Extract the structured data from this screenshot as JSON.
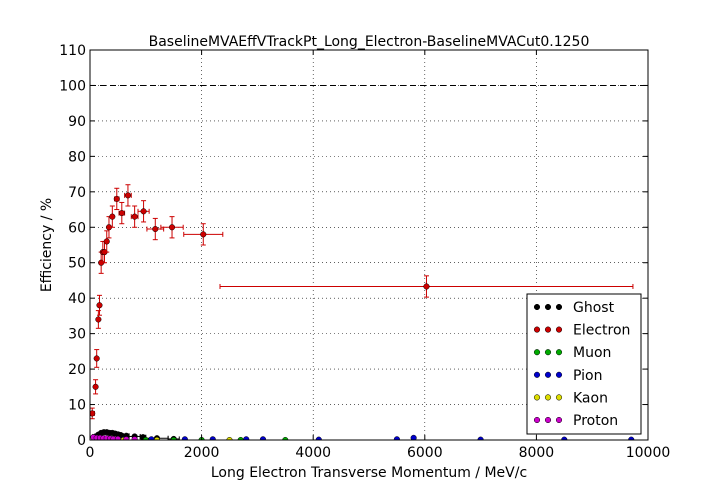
{
  "chart_data": {
    "type": "scatter",
    "title": "BaselineMVAEffVTrackPt_Long_Electron-BaselineMVACut0.1250",
    "xlabel": "Long Electron Transverse Momentum / MeV/c",
    "ylabel": "Efficiency / %",
    "xlim": [
      0,
      10000
    ],
    "ylim": [
      0,
      110
    ],
    "x_ticks": [
      "0",
      "2000",
      "4000",
      "6000",
      "8000",
      "10000"
    ],
    "y_ticks": [
      "0",
      "10",
      "20",
      "30",
      "40",
      "50",
      "60",
      "70",
      "80",
      "90",
      "100",
      "110"
    ],
    "grid": true,
    "reference_line": 100,
    "legend_position": "lower-right",
    "series": [
      {
        "name": "Ghost",
        "color": "#000000",
        "points": [
          {
            "x": 100,
            "y": 1.0,
            "xerr": 50,
            "yerr": 0.4
          },
          {
            "x": 150,
            "y": 1.5,
            "xerr": 25,
            "yerr": 0.4
          },
          {
            "x": 200,
            "y": 2.0,
            "xerr": 25,
            "yerr": 0.4
          },
          {
            "x": 250,
            "y": 2.2,
            "xerr": 25,
            "yerr": 0.4
          },
          {
            "x": 300,
            "y": 2.2,
            "xerr": 25,
            "yerr": 0.4
          },
          {
            "x": 350,
            "y": 2.0,
            "xerr": 25,
            "yerr": 0.4
          },
          {
            "x": 400,
            "y": 2.0,
            "xerr": 25,
            "yerr": 0.4
          },
          {
            "x": 450,
            "y": 1.8,
            "xerr": 25,
            "yerr": 0.4
          },
          {
            "x": 500,
            "y": 1.6,
            "xerr": 25,
            "yerr": 0.4
          },
          {
            "x": 550,
            "y": 1.4,
            "xerr": 25,
            "yerr": 0.4
          },
          {
            "x": 650,
            "y": 1.2,
            "xerr": 50,
            "yerr": 0.4
          },
          {
            "x": 800,
            "y": 1.0,
            "xerr": 100,
            "yerr": 0.4
          },
          {
            "x": 950,
            "y": 0.8,
            "xerr": 50,
            "yerr": 0.4
          },
          {
            "x": 1200,
            "y": 0.5,
            "xerr": 200,
            "yerr": 0.3
          },
          {
            "x": 1500,
            "y": 0.3,
            "xerr": 100,
            "yerr": 0.3
          }
        ]
      },
      {
        "name": "Electron",
        "color": "#cc0000",
        "points": [
          {
            "x": 40,
            "y": 7.5,
            "xerr": 40,
            "yerr": 1.5
          },
          {
            "x": 100,
            "y": 15.0,
            "xerr": 20,
            "yerr": 2.0
          },
          {
            "x": 120,
            "y": 23.0,
            "xerr": 20,
            "yerr": 2.5
          },
          {
            "x": 150,
            "y": 34.0,
            "xerr": 20,
            "yerr": 2.5
          },
          {
            "x": 170,
            "y": 38.0,
            "xerr": 20,
            "yerr": 2.8
          },
          {
            "x": 200,
            "y": 50.0,
            "xerr": 20,
            "yerr": 3.0
          },
          {
            "x": 230,
            "y": 53.0,
            "xerr": 20,
            "yerr": 3.0
          },
          {
            "x": 260,
            "y": 53.0,
            "xerr": 20,
            "yerr": 3.0
          },
          {
            "x": 300,
            "y": 56.0,
            "xerr": 25,
            "yerr": 3.0
          },
          {
            "x": 340,
            "y": 60.0,
            "xerr": 25,
            "yerr": 3.0
          },
          {
            "x": 400,
            "y": 63.0,
            "xerr": 25,
            "yerr": 3.0
          },
          {
            "x": 480,
            "y": 68.0,
            "xerr": 40,
            "yerr": 3.0
          },
          {
            "x": 570,
            "y": 64.0,
            "xerr": 50,
            "yerr": 3.0
          },
          {
            "x": 680,
            "y": 69.0,
            "xerr": 60,
            "yerr": 3.0
          },
          {
            "x": 800,
            "y": 63.0,
            "xerr": 60,
            "yerr": 3.0
          },
          {
            "x": 960,
            "y": 64.5,
            "xerr": 100,
            "yerr": 3.0
          },
          {
            "x": 1170,
            "y": 59.5,
            "xerr": 150,
            "yerr": 3.0
          },
          {
            "x": 1470,
            "y": 60.0,
            "xerr": 200,
            "yerr": 3.0
          },
          {
            "x": 2030,
            "y": 58.0,
            "xerr": 350,
            "yerr": 3.0
          },
          {
            "x": 6030,
            "y": 43.3,
            "xerr": 3700,
            "yerr": 3.0
          }
        ]
      },
      {
        "name": "Muon",
        "color": "#00aa00",
        "points": [
          {
            "x": 400,
            "y": 0.0
          },
          {
            "x": 1000,
            "y": 0.0
          },
          {
            "x": 1500,
            "y": 0.0
          },
          {
            "x": 2000,
            "y": 0.0
          },
          {
            "x": 2700,
            "y": 0.0
          },
          {
            "x": 3500,
            "y": 0.0
          }
        ]
      },
      {
        "name": "Pion",
        "color": "#0000cc",
        "points": [
          {
            "x": 600,
            "y": 0.2
          },
          {
            "x": 1100,
            "y": 0.2
          },
          {
            "x": 1700,
            "y": 0.2
          },
          {
            "x": 2200,
            "y": 0.2
          },
          {
            "x": 2800,
            "y": 0.2
          },
          {
            "x": 3100,
            "y": 0.2
          },
          {
            "x": 4100,
            "y": 0.1
          },
          {
            "x": 5500,
            "y": 0.2
          },
          {
            "x": 5800,
            "y": 0.6
          },
          {
            "x": 7000,
            "y": 0.1
          },
          {
            "x": 8500,
            "y": 0.1
          },
          {
            "x": 9700,
            "y": 0.1
          }
        ]
      },
      {
        "name": "Kaon",
        "color": "#dddd00",
        "points": [
          {
            "x": 600,
            "y": 0.0
          },
          {
            "x": 1200,
            "y": 0.0
          },
          {
            "x": 2500,
            "y": 0.0
          }
        ]
      },
      {
        "name": "Proton",
        "color": "#cc00cc",
        "points": [
          {
            "x": 60,
            "y": 0.8
          },
          {
            "x": 120,
            "y": 0.6
          },
          {
            "x": 180,
            "y": 0.6
          },
          {
            "x": 240,
            "y": 0.5
          },
          {
            "x": 300,
            "y": 0.5
          },
          {
            "x": 360,
            "y": 0.4
          },
          {
            "x": 420,
            "y": 0.3
          },
          {
            "x": 500,
            "y": 0.3
          },
          {
            "x": 650,
            "y": 0.2
          },
          {
            "x": 800,
            "y": 0.2
          }
        ]
      }
    ]
  }
}
